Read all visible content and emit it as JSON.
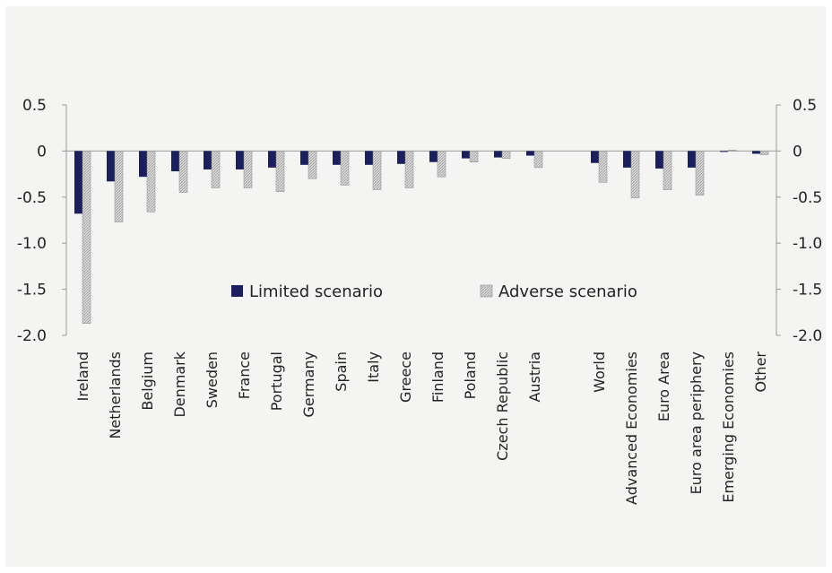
{
  "chart_data": {
    "type": "bar",
    "categories": [
      "Ireland",
      "Netherlands",
      "Belgium",
      "Denmark",
      "Sweden",
      "France",
      "Portugal",
      "Germany",
      "Spain",
      "Italy",
      "Greece",
      "Finland",
      "Poland",
      "Czech Republic",
      "Austria",
      "",
      "World",
      "Advanced Economies",
      "Euro Area",
      "Euro area periphery",
      "Emerging Economies",
      "Other"
    ],
    "series": [
      {
        "name": "Limited scenario",
        "color": "#1c1f5e",
        "values": [
          -0.68,
          -0.33,
          -0.28,
          -0.22,
          -0.2,
          -0.2,
          -0.18,
          -0.15,
          -0.15,
          -0.15,
          -0.14,
          -0.12,
          -0.08,
          -0.07,
          -0.05,
          null,
          -0.13,
          -0.18,
          -0.19,
          -0.18,
          0.0,
          -0.03
        ]
      },
      {
        "name": "Adverse scenario",
        "color": "#c9c9c9",
        "values": [
          -1.87,
          -0.77,
          -0.66,
          -0.45,
          -0.4,
          -0.4,
          -0.44,
          -0.3,
          -0.37,
          -0.42,
          -0.4,
          -0.28,
          -0.12,
          -0.08,
          -0.18,
          null,
          -0.34,
          -0.51,
          -0.42,
          -0.48,
          0.01,
          -0.04
        ]
      }
    ],
    "ylim": [
      -2.0,
      0.5
    ],
    "yticks": [
      "0.5",
      "0",
      "-0.5",
      "-1.0",
      "-1.5",
      "-2.0"
    ],
    "ytick_values": [
      0.5,
      0,
      -0.5,
      -1.0,
      -1.5,
      -2.0
    ],
    "legend": "inside-bottom-center",
    "grid": false,
    "title": "",
    "xlabel": "",
    "ylabel": ""
  }
}
